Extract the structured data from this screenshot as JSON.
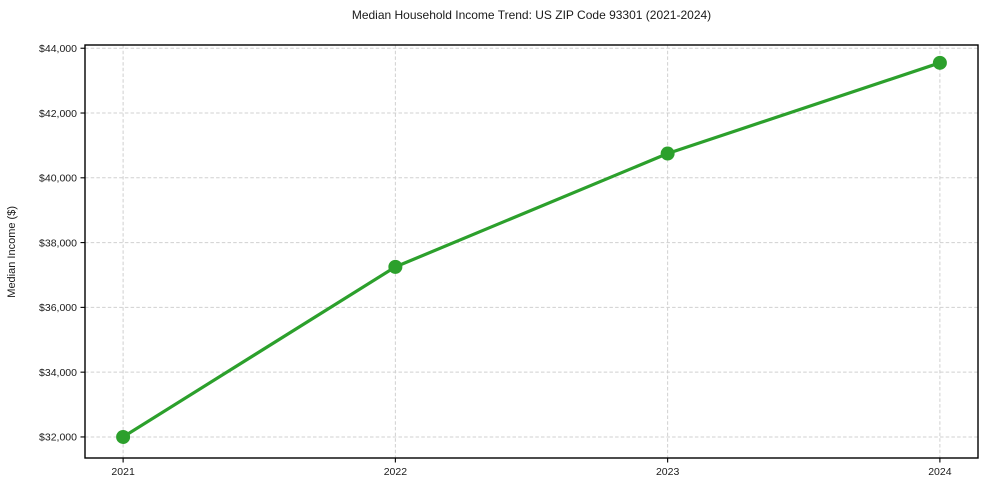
{
  "chart_data": {
    "type": "line",
    "title": "Median Household Income Trend: US ZIP Code 93301 (2021-2024)",
    "xlabel": "",
    "ylabel": "Median Income ($)",
    "x": [
      2021,
      2022,
      2023,
      2024
    ],
    "x_tick_labels": [
      "2021",
      "2022",
      "2023",
      "2024"
    ],
    "series": [
      {
        "name": "Median Household Income",
        "values": [
          32000,
          37250,
          40750,
          43550
        ]
      }
    ],
    "y_ticks": [
      32000,
      34000,
      36000,
      38000,
      40000,
      42000,
      44000
    ],
    "y_tick_labels": [
      "$32,000",
      "$34,000",
      "$36,000",
      "$38,000",
      "$40,000",
      "$42,000",
      "$44,000"
    ],
    "xlim": [
      2020.86,
      2024.14
    ],
    "ylim": [
      31350,
      44100
    ],
    "grid": "on",
    "grid_style": "dashed",
    "legend": "none",
    "marker": "circle",
    "colors": {
      "line": "#2ca02c",
      "marker": "#2ca02c",
      "grid": "#d0d0d0",
      "spine": "#000000",
      "text": "#1a1a1a",
      "background": "#ffffff"
    }
  }
}
